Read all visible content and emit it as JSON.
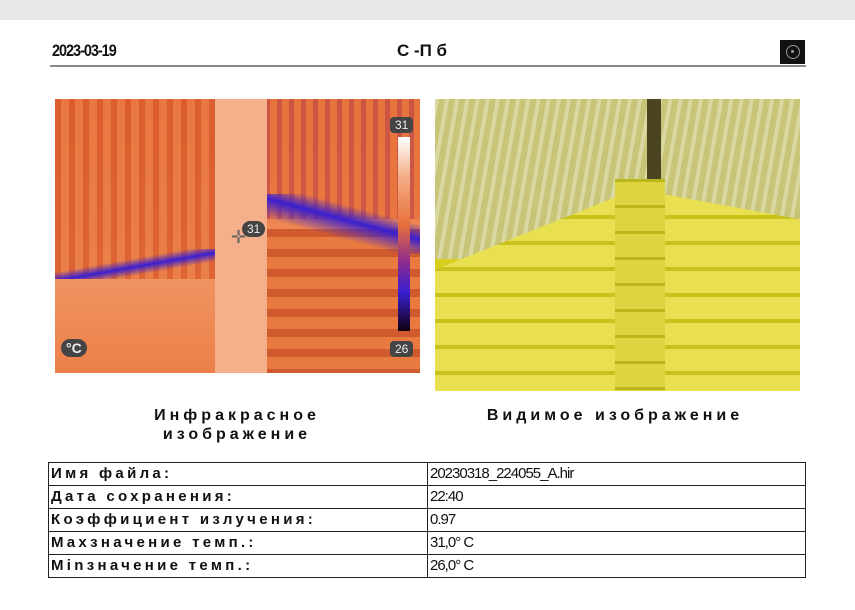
{
  "header": {
    "date": "2023-03-19",
    "title": "С -П б",
    "logo_icon": "camera-lens-logo"
  },
  "ir_image": {
    "max_label": "31",
    "min_label": "26",
    "spot_label": "31",
    "unit": "°C",
    "palette": "iron"
  },
  "captions": {
    "ir": "Инфракрасное изображение",
    "visible": "Видимое изображение"
  },
  "table": [
    {
      "key": "Имя файла:",
      "value": "20230318_224055_A.hir"
    },
    {
      "key": "Дата сохранения:",
      "value": "22:40"
    },
    {
      "key": "Коэффициент излучения:",
      "value": "0.97"
    },
    {
      "key": "Maxзначение темп.:",
      "value": "31,0° C"
    },
    {
      "key": "Minзначение темп.:",
      "value": "26,0° C"
    }
  ]
}
